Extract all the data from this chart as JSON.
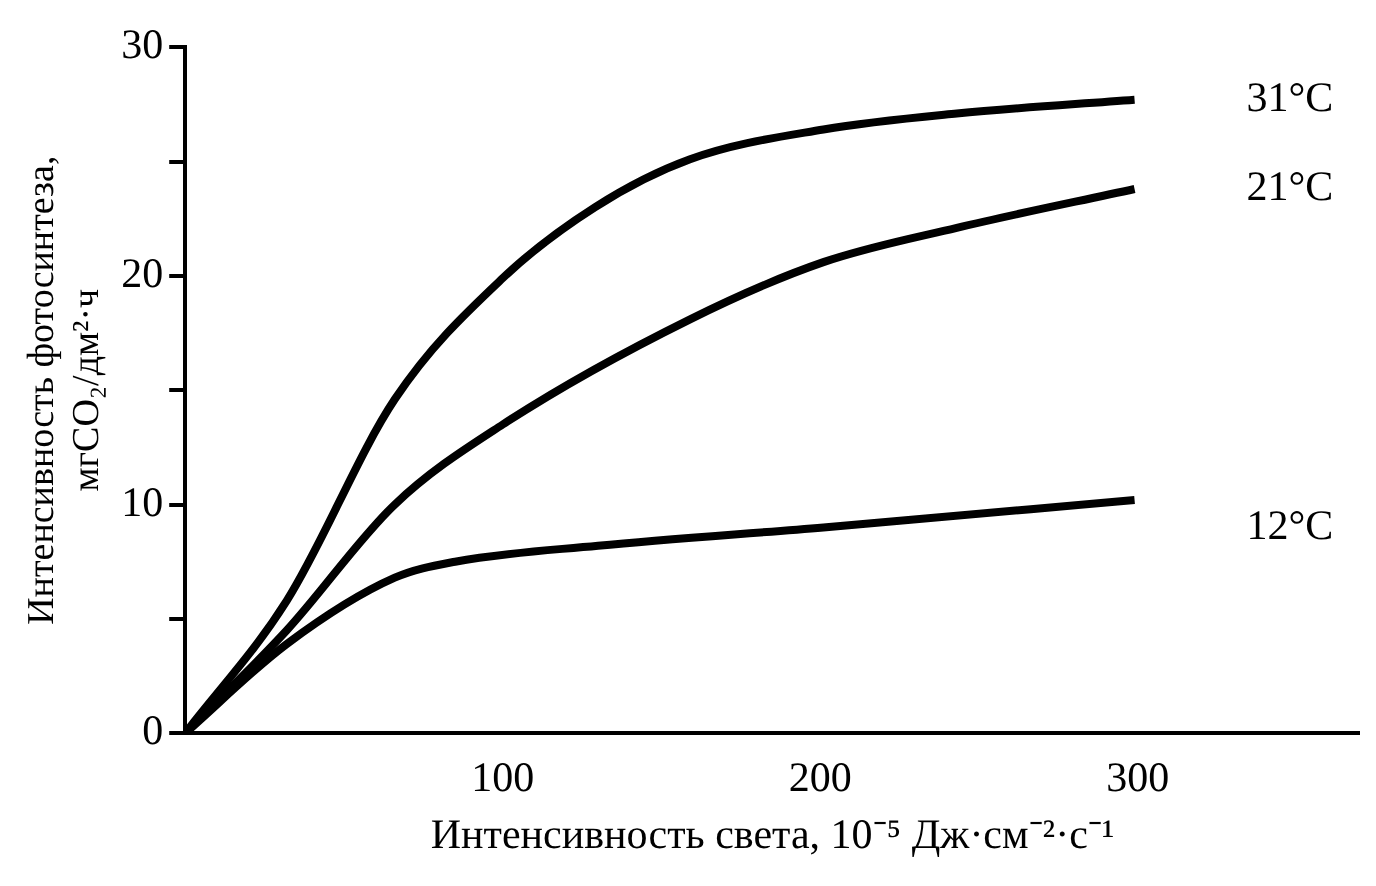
{
  "chart_data": {
    "type": "line",
    "xlabel": "Интенсивность света, 10⁻⁵ Дж·см⁻²·с⁻¹",
    "ylabel": "Интенсивность фотосинтеза, мгCO₂/дм²·ч",
    "xlim": [
      0,
      370
    ],
    "xticks": [
      100,
      200,
      300
    ],
    "ylim": [
      0,
      30
    ],
    "yticks": [
      0,
      {
        "value": 5,
        "label": null
      },
      10,
      {
        "value": 15,
        "label": null
      },
      20,
      {
        "value": 25,
        "label": null
      },
      30
    ],
    "grid": false,
    "legend": false,
    "marker": "none",
    "line_style": "solid",
    "series": [
      {
        "name": "31°C",
        "color": "#000000",
        "x": [
          0,
          32,
          66,
          100,
          129,
          159,
          201,
          243,
          299
        ],
        "values": [
          0,
          5.8,
          14.6,
          19.9,
          23,
          25.1,
          26.4,
          27.1,
          27.7
        ]
      },
      {
        "name": "21°C",
        "color": "#000000",
        "x": [
          0,
          32,
          66,
          100,
          159,
          201,
          243,
          299
        ],
        "values": [
          0,
          4.5,
          10,
          13.5,
          18.1,
          20.6,
          22.1,
          23.8
        ]
      },
      {
        "name": "12°C",
        "color": "#000000",
        "x": [
          0,
          32,
          66,
          85,
          130,
          201,
          299
        ],
        "values": [
          0,
          3.9,
          6.8,
          7.5,
          8.2,
          9,
          10.2
        ]
      }
    ]
  }
}
